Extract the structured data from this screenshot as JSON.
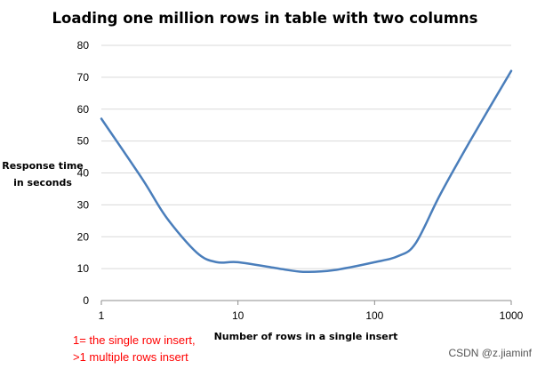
{
  "chart_data": {
    "type": "line",
    "title": "Loading one million rows in table with two columns",
    "xlabel": "Number of rows in a single insert",
    "ylabel": [
      "Response time",
      "in seconds"
    ],
    "xscale": "log",
    "xlim": [
      1,
      1000
    ],
    "ylim": [
      0,
      80
    ],
    "xticks": [
      1,
      10,
      100,
      1000
    ],
    "xtick_labels": [
      "1",
      "10",
      "100",
      "1000"
    ],
    "yticks": [
      0,
      10,
      20,
      30,
      40,
      50,
      60,
      70,
      80
    ],
    "ytick_labels": [
      "0",
      "10",
      "20",
      "30",
      "40",
      "50",
      "60",
      "70",
      "80"
    ],
    "grid": "horizontal",
    "series": [
      {
        "name": "Response time",
        "color": "#4a7ebb",
        "x": [
          1,
          2,
          3,
          5,
          7,
          10,
          20,
          30,
          50,
          100,
          150,
          200,
          300,
          500,
          1000
        ],
        "y": [
          57,
          38,
          26,
          15,
          12,
          12,
          10,
          9,
          9.5,
          12,
          14,
          18,
          33,
          50,
          72
        ]
      }
    ],
    "annotations": [
      "1= the single row  insert,",
      ">1 multiple rows insert"
    ]
  },
  "watermark": "CSDN @z.jiaminf",
  "colors": {
    "grid": "#d9d9d9",
    "line": "#4a7ebb",
    "note": "#ff0000"
  }
}
